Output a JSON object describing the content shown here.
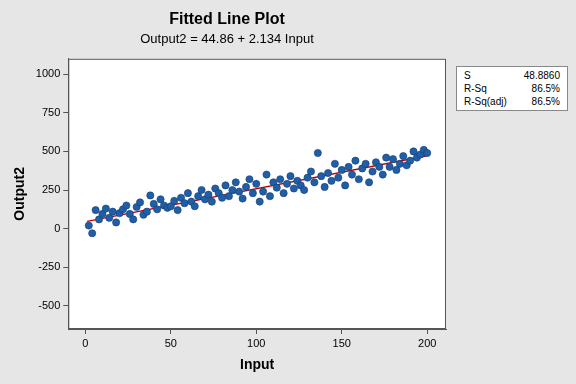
{
  "chart_data": {
    "type": "scatter",
    "title": "Fitted Line Plot",
    "subtitle": "Output2 = 44.86 + 2.134 Input",
    "x_label": "Input",
    "y_label": "Output2",
    "x": [
      2,
      4,
      6,
      8,
      10,
      12,
      14,
      16,
      18,
      20,
      22,
      24,
      26,
      28,
      30,
      32,
      34,
      36,
      38,
      40,
      42,
      44,
      46,
      48,
      50,
      52,
      54,
      56,
      58,
      60,
      62,
      64,
      66,
      68,
      70,
      72,
      74,
      76,
      78,
      80,
      82,
      84,
      86,
      88,
      90,
      92,
      94,
      96,
      98,
      100,
      102,
      104,
      106,
      108,
      110,
      112,
      114,
      116,
      118,
      120,
      122,
      124,
      126,
      128,
      130,
      132,
      134,
      136,
      138,
      140,
      142,
      144,
      146,
      148,
      150,
      152,
      154,
      156,
      158,
      160,
      162,
      164,
      166,
      168,
      170,
      172,
      174,
      176,
      178,
      180,
      182,
      184,
      186,
      188,
      190,
      192,
      194,
      196,
      198,
      200
    ],
    "values": [
      20,
      -30,
      120,
      60,
      95,
      130,
      70,
      110,
      40,
      100,
      125,
      150,
      95,
      60,
      140,
      170,
      90,
      110,
      215,
      160,
      125,
      190,
      150,
      135,
      145,
      180,
      120,
      200,
      165,
      230,
      175,
      145,
      210,
      250,
      190,
      220,
      175,
      260,
      230,
      200,
      280,
      210,
      250,
      300,
      240,
      195,
      270,
      320,
      230,
      290,
      175,
      240,
      350,
      210,
      300,
      265,
      320,
      230,
      290,
      340,
      260,
      310,
      280,
      250,
      330,
      370,
      300,
      490,
      340,
      270,
      360,
      310,
      420,
      330,
      380,
      280,
      400,
      350,
      440,
      320,
      390,
      420,
      300,
      370,
      430,
      400,
      350,
      460,
      400,
      450,
      380,
      420,
      470,
      410,
      440,
      500,
      460,
      480,
      510,
      490
    ],
    "color": "#1f5fa8",
    "marker": "circle",
    "fit_line": {
      "x": [
        1,
        200
      ],
      "values": [
        46.99,
        471.66
      ],
      "color": "#c00000",
      "line_style": "solid"
    },
    "stats": [
      {
        "label": "S",
        "value": "48.8860"
      },
      {
        "label": "R-Sq",
        "value": "86.5%"
      },
      {
        "label": "R-Sq(adj)",
        "value": "86.5%"
      }
    ],
    "xlim": [
      -10,
      211
    ],
    "xticks": [
      0,
      50,
      100,
      150,
      200
    ],
    "ylim": [
      -650,
      1100
    ],
    "yticks": [
      -500,
      -250,
      0,
      250,
      500,
      750,
      1000
    ],
    "grid": false
  }
}
